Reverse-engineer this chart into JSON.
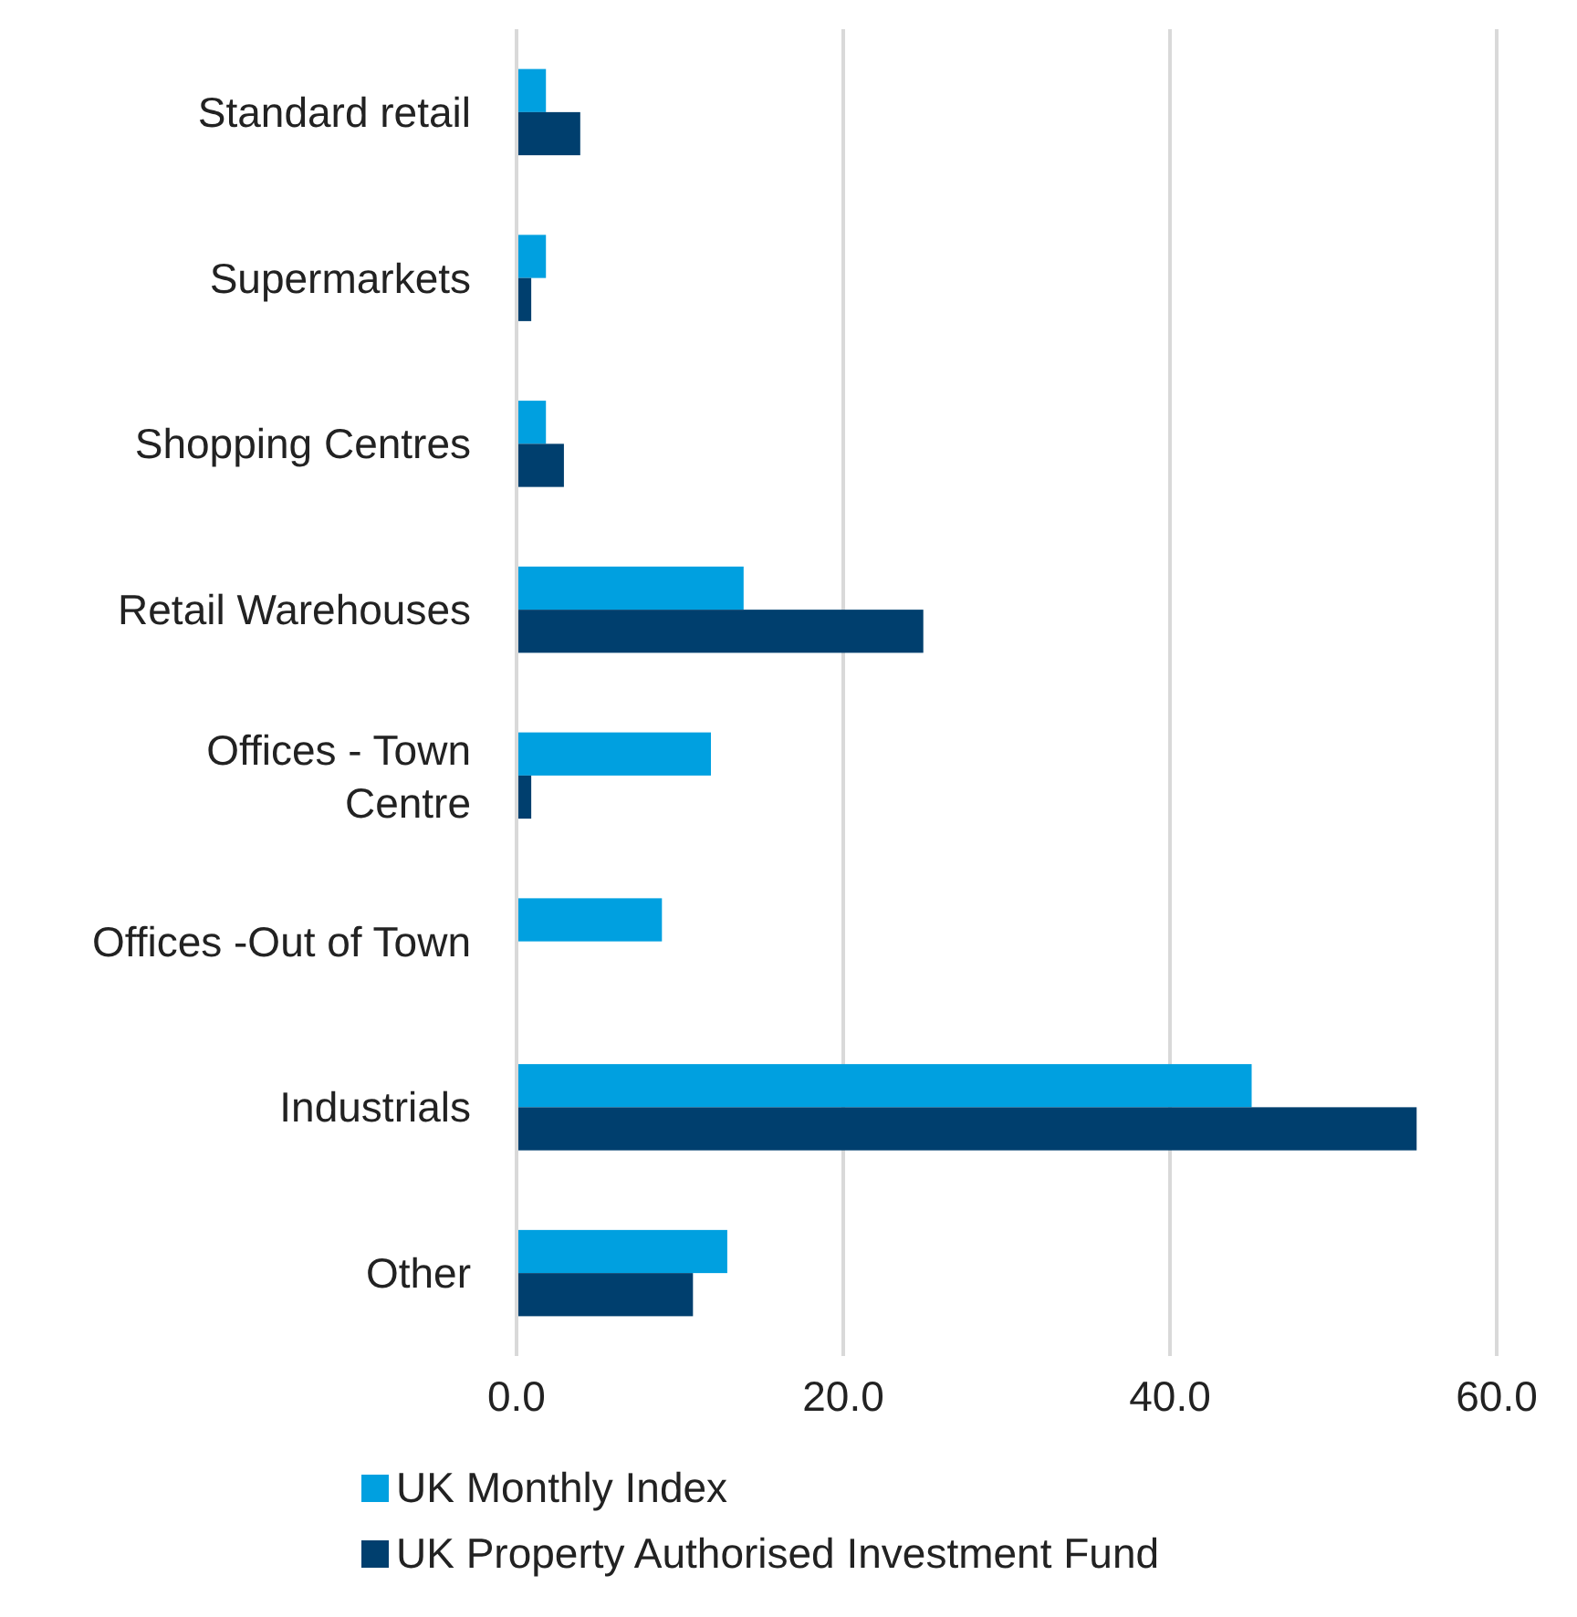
{
  "chart_data": {
    "type": "bar",
    "orientation": "horizontal",
    "categories": [
      "Standard retail",
      "Supermarkets",
      "Shopping Centres",
      "Retail Warehouses",
      "Offices - Town Centre",
      "Offices -Out of Town",
      "Industrials",
      "Other"
    ],
    "series": [
      {
        "name": "UK Monthly Index",
        "color": "#00a0e0",
        "values": [
          1.8,
          1.8,
          1.8,
          13.9,
          11.9,
          8.9,
          45.0,
          12.9
        ]
      },
      {
        "name": "UK Property Authorised Investment Fund",
        "color": "#003f6e",
        "values": [
          3.9,
          0.9,
          2.9,
          24.9,
          0.9,
          0,
          55.1,
          10.8
        ]
      }
    ],
    "xlim": [
      0,
      60
    ],
    "xticks": [
      {
        "value": 0,
        "label": "0.0"
      },
      {
        "value": 20,
        "label": "20.0"
      },
      {
        "value": 40,
        "label": "40.0"
      },
      {
        "value": 60,
        "label": "60.0"
      }
    ],
    "grid": "x",
    "legend": "bottom"
  }
}
